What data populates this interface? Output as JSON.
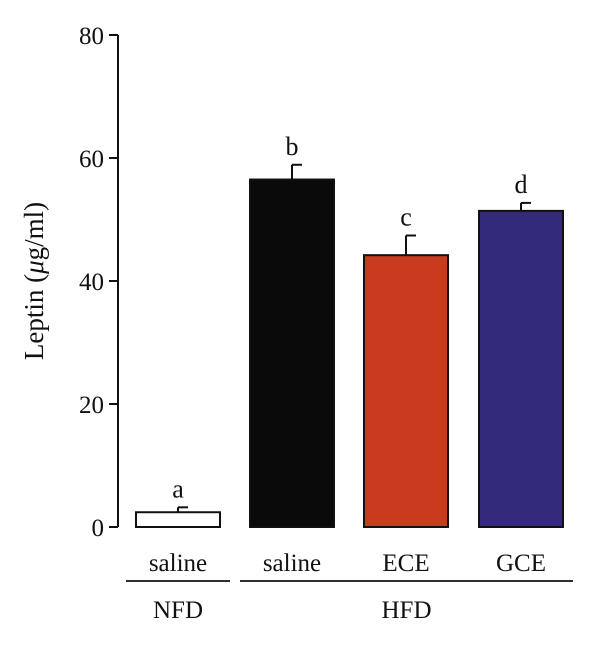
{
  "chart_data": {
    "type": "bar",
    "ylabel_parts": [
      "Leptin (",
      "μ",
      "g/ml)"
    ],
    "ylim": [
      0,
      80
    ],
    "yticks": [
      0,
      20,
      40,
      60,
      80
    ],
    "categories": [
      "saline",
      "saline",
      "ECE",
      "GCE"
    ],
    "groups": [
      {
        "label": "NFD",
        "members": [
          0
        ]
      },
      {
        "label": "HFD",
        "members": [
          1,
          2,
          3
        ]
      }
    ],
    "values": [
      2.4,
      56.5,
      44.2,
      51.4
    ],
    "errors": [
      0.8,
      2.4,
      3.2,
      1.3
    ],
    "significance": [
      "a",
      "b",
      "c",
      "d"
    ],
    "colors": [
      "#ffffff",
      "#0a0a0a",
      "#c93a1f",
      "#332a7c"
    ],
    "grid": false,
    "legend": "none"
  }
}
